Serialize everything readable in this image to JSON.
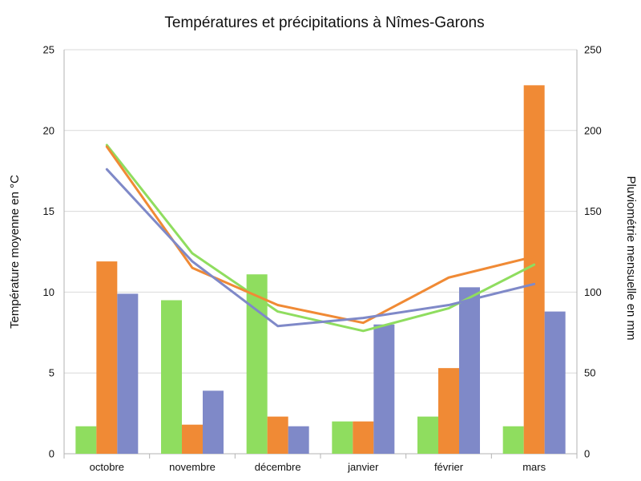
{
  "chart_data": {
    "type": "bar",
    "title": "Températures et précipitations à Nîmes-Garons",
    "xlabel": "",
    "ylabel": "Température moyenne en °C",
    "y2label": "Pluviométrie mensuelle en mm",
    "categories": [
      "octobre",
      "novembre",
      "décembre",
      "janvier",
      "février",
      "mars"
    ],
    "ylim": [
      0,
      25
    ],
    "y2lim": [
      0,
      250
    ],
    "yticks": [
      "0",
      "5",
      "10",
      "15",
      "20",
      "25"
    ],
    "y2ticks": [
      "0",
      "50",
      "100",
      "150",
      "200",
      "250"
    ],
    "grid": true,
    "legend": "none",
    "bar_series": [
      {
        "color": "#8fdd5f",
        "axis": "y2",
        "values": [
          17,
          95,
          111,
          20,
          23,
          17
        ]
      },
      {
        "color": "#f08a35",
        "axis": "y2",
        "values": [
          119,
          18,
          23,
          20,
          53,
          228
        ]
      },
      {
        "color": "#7f89c8",
        "axis": "y2",
        "values": [
          99,
          39,
          17,
          80,
          103,
          88
        ]
      }
    ],
    "line_series": [
      {
        "color": "#8fdd5f",
        "axis": "y",
        "values": [
          19.1,
          12.4,
          8.8,
          7.6,
          9.0,
          11.7
        ]
      },
      {
        "color": "#f08a35",
        "axis": "y",
        "values": [
          19.0,
          11.5,
          9.2,
          8.1,
          10.9,
          12.2
        ]
      },
      {
        "color": "#7f89c8",
        "axis": "y",
        "values": [
          17.6,
          11.9,
          7.9,
          8.4,
          9.2,
          10.5
        ]
      }
    ]
  }
}
